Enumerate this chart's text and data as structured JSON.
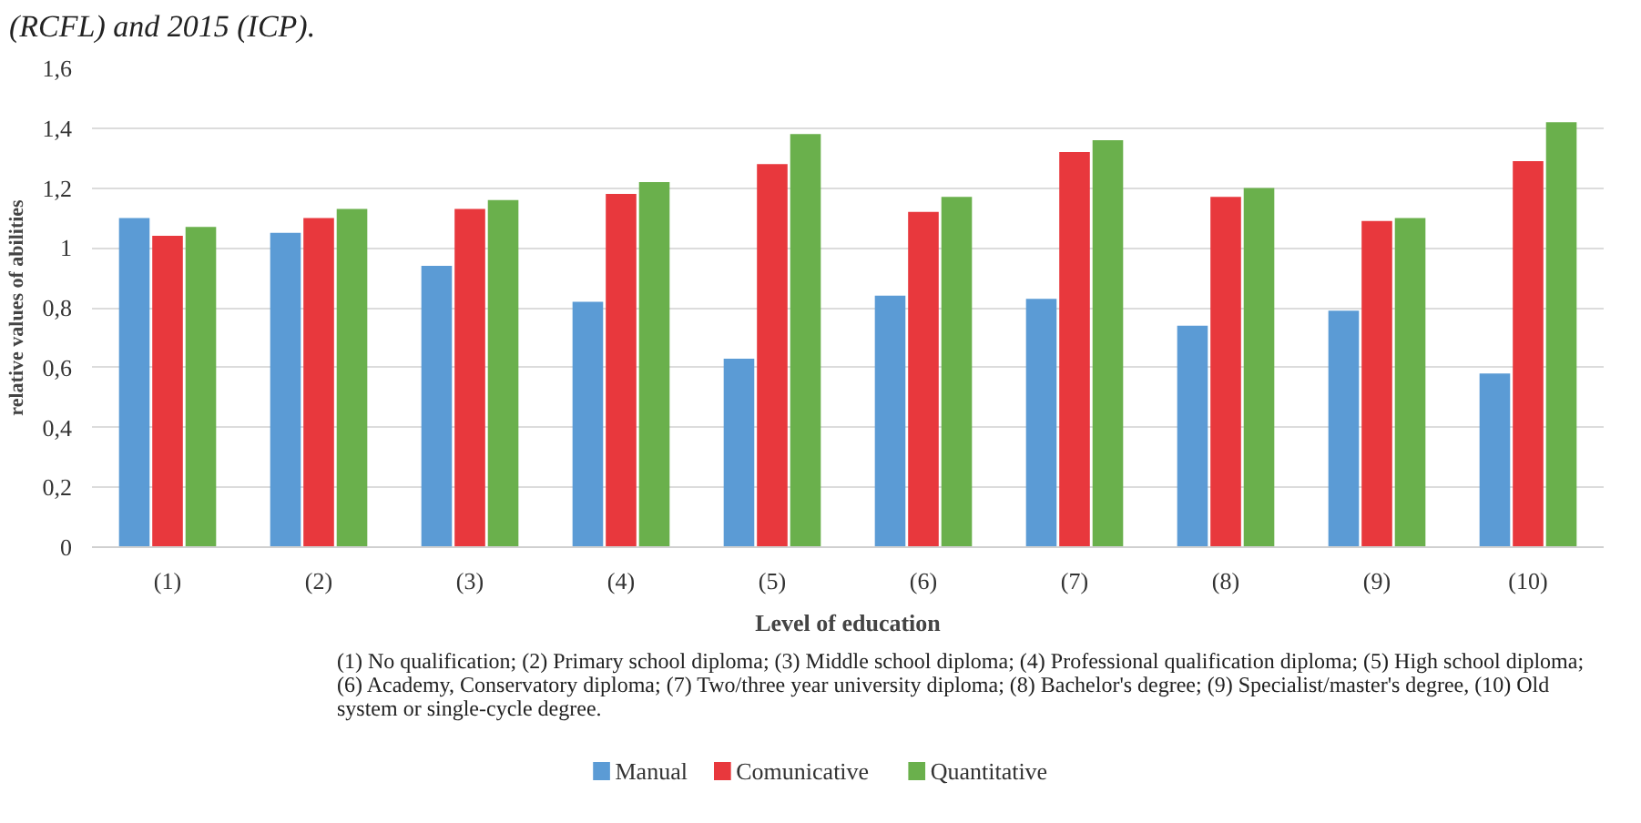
{
  "chart_data": {
    "type": "bar",
    "ylabel": "relative values of abilities",
    "xlabel": "Level of education",
    "categories": [
      "(1)",
      "(2)",
      "(3)",
      "(4)",
      "(5)",
      "(6)",
      "(7)",
      "(8)",
      "(9)",
      "(10)"
    ],
    "series": [
      {
        "name": "Manual",
        "color": "#5b9bd5",
        "values": [
          1.1,
          1.05,
          0.94,
          0.82,
          0.63,
          0.84,
          0.83,
          0.74,
          0.79,
          0.58
        ]
      },
      {
        "name": "Comunicative",
        "color": "#e8383d",
        "values": [
          1.04,
          1.1,
          1.13,
          1.18,
          1.28,
          1.12,
          1.32,
          1.17,
          1.09,
          1.29
        ]
      },
      {
        "name": "Quantitative",
        "color": "#6ab04c",
        "values": [
          1.07,
          1.13,
          1.16,
          1.22,
          1.38,
          1.17,
          1.36,
          1.2,
          1.1,
          1.42
        ]
      }
    ],
    "ylim": [
      0,
      1.6
    ],
    "yticks": [
      0,
      {
        "value": 0.2,
        "label": "0,2"
      },
      {
        "value": 0.4,
        "label": "0,4"
      },
      {
        "value": 0.6,
        "label": "0,6"
      },
      {
        "value": 0.8,
        "label": "0,8"
      },
      1,
      {
        "value": 1.2,
        "label": "1,2"
      },
      {
        "value": 1.4,
        "label": "1,4"
      },
      {
        "value": 1.6,
        "label": "1,6"
      }
    ],
    "grid": "y",
    "legend": "bottom",
    "annotations": [
      "(RCFL) and 2015 (ICP).",
      "(1) No qualification;  (2) Primary school diploma; (3) Middle school diploma; (4) Professional qualification  diploma; (5) High school diploma; (6) Academy, Conservatory diploma; (7) Two/three year university  diploma; (8) Bachelor's degree; (9) Specialist/master's degree, (10) Old system or single-cycle  degree."
    ]
  }
}
